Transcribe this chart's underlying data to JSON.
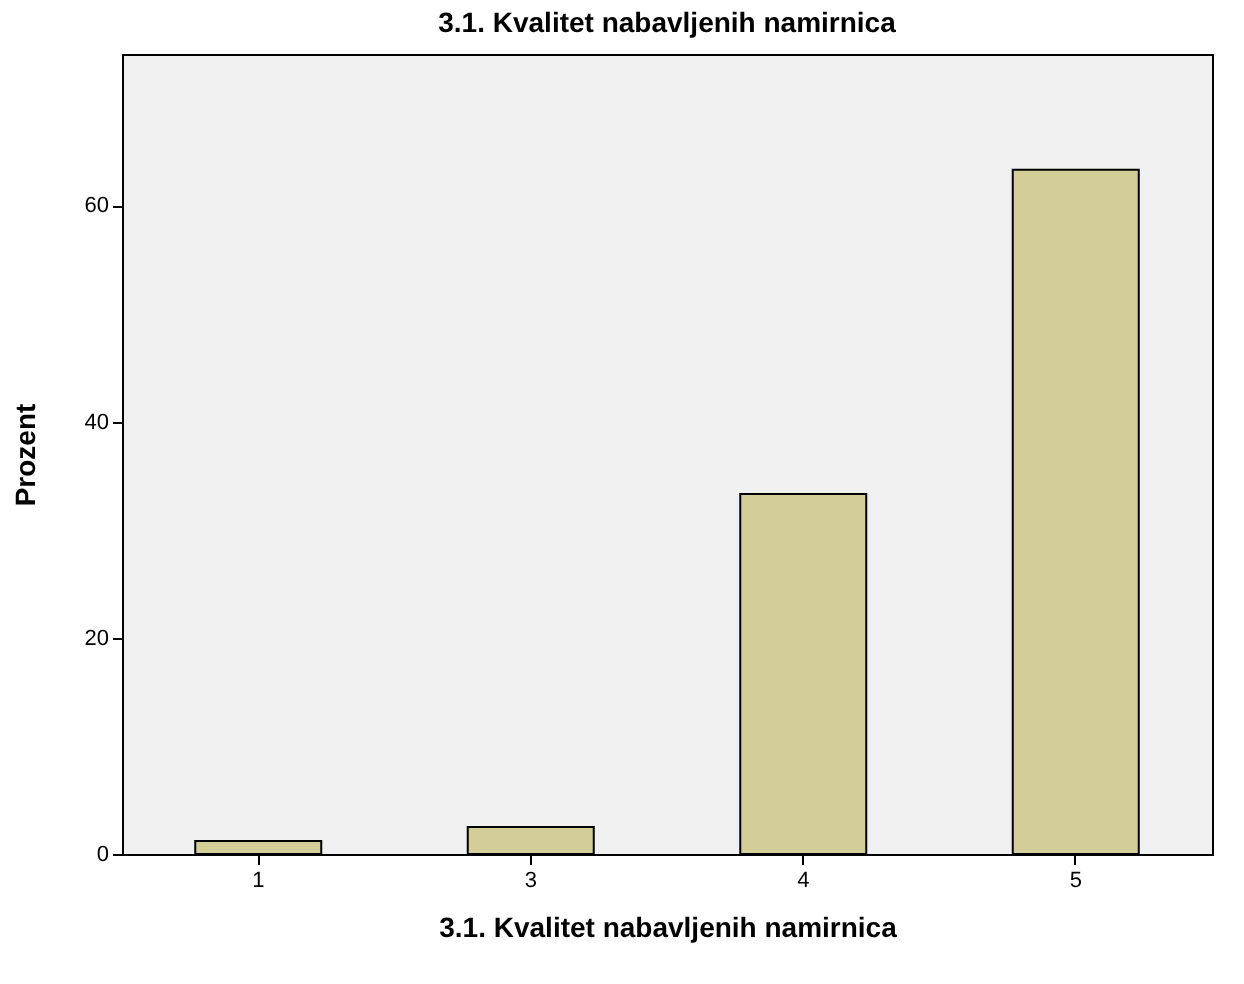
{
  "chart_data": {
    "type": "bar",
    "title": "3.1. Kvalitet nabavljenih namirnica",
    "xlabel": "3.1. Kvalitet nabavljenih namirnica",
    "ylabel": "Prozent",
    "categories": [
      "1",
      "3",
      "4",
      "5"
    ],
    "values": [
      1.2,
      2.5,
      33.3,
      63.3
    ],
    "color": "#d3ce98",
    "ylim": [
      0,
      74
    ],
    "yticks": [
      0,
      20,
      40,
      60
    ],
    "grid": false
  }
}
